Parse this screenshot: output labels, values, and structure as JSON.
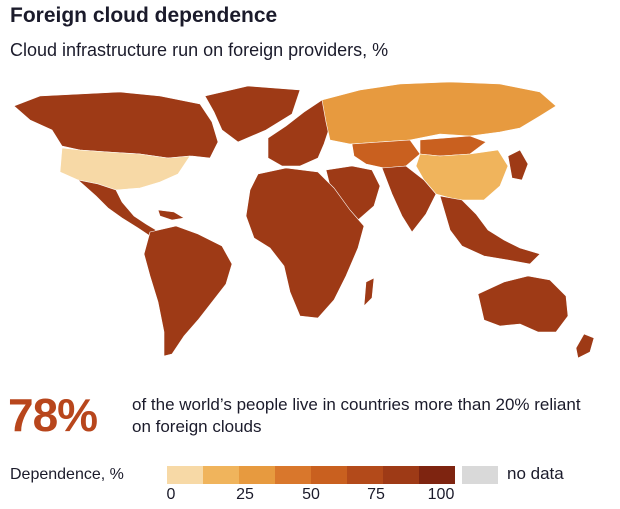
{
  "header": {
    "title": "Foreign cloud dependence",
    "subtitle": "Cloud infrastructure run on foreign providers, %"
  },
  "stat": {
    "value": "78%",
    "text": "of the world’s people live in countries more than 20% reliant on foreign clouds"
  },
  "legend": {
    "label": "Dependence, %",
    "colors": [
      "#f7d9a6",
      "#f0b45c",
      "#e79a3f",
      "#d9772c",
      "#c9601f",
      "#b34a1a",
      "#9e3a16",
      "#7e2410"
    ],
    "ticks": [
      "0",
      "25",
      "50",
      "75",
      "100"
    ],
    "nodata_label": "no data",
    "nodata_color": "#d9d9d9"
  },
  "regions": [
    {
      "name": "North America (Canada, Mexico)",
      "color": "#9e3a16"
    },
    {
      "name": "United States",
      "color": "#f7d9a6"
    },
    {
      "name": "Greenland",
      "color": "#9e3a16"
    },
    {
      "name": "South America",
      "color": "#9e3a16"
    },
    {
      "name": "Europe",
      "color": "#9e3a16"
    },
    {
      "name": "Russia",
      "color": "#e79a3f"
    },
    {
      "name": "Central Asia",
      "color": "#c9601f"
    },
    {
      "name": "China",
      "color": "#f0b45c"
    },
    {
      "name": "Africa",
      "color": "#9e3a16"
    },
    {
      "name": "Middle East & South Asia",
      "color": "#9e3a16"
    },
    {
      "name": "Southeast Asia",
      "color": "#9e3a16"
    },
    {
      "name": "Australia",
      "color": "#9e3a16"
    },
    {
      "name": "Japan",
      "color": "#9e3a16"
    }
  ]
}
